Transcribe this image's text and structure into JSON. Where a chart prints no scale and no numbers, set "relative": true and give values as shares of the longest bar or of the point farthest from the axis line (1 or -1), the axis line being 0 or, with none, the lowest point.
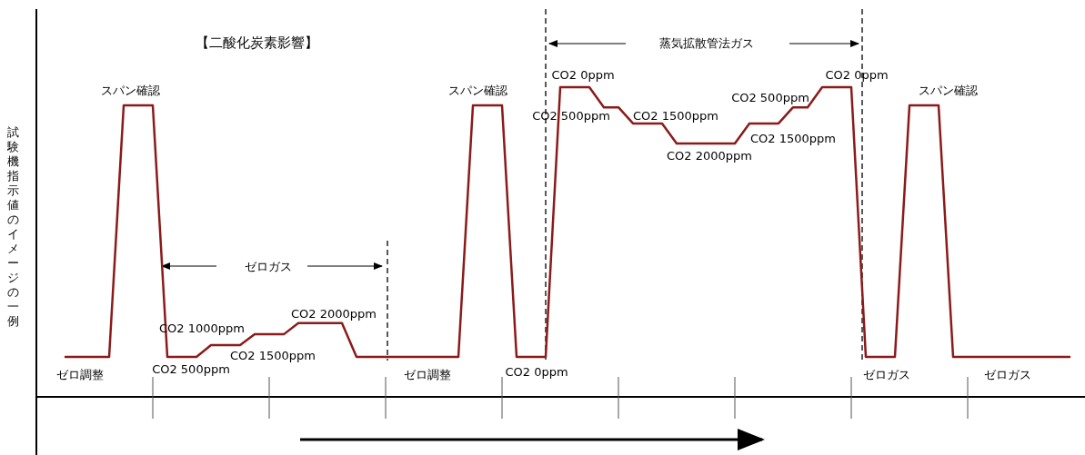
{
  "chart_data": {
    "type": "line",
    "relative": true,
    "title": "【二酸化炭素影響】",
    "ylabel": "試験機指示値のイメージの一例",
    "categories": [
      null,
      null,
      null,
      null,
      null,
      null,
      null,
      null,
      null,
      null,
      null,
      null,
      null,
      null,
      null,
      null,
      null,
      null,
      null,
      null,
      null,
      null,
      null,
      null,
      null,
      null,
      null,
      null,
      null,
      null,
      null,
      null,
      null,
      null,
      null,
      null,
      null,
      null,
      null,
      null,
      null,
      null,
      null,
      null,
      null,
      null,
      null,
      null,
      null,
      null,
      null,
      null,
      null,
      null,
      null,
      null,
      null,
      null,
      null,
      null,
      null,
      null,
      null,
      null,
      null,
      null,
      null,
      null,
      null,
      null,
      null,
      null
    ],
    "series": [
      {
        "color": "#8b1a1a",
        "values": [
          null,
          null,
          0.129,
          0.129,
          0.129,
          0.129,
          0.941,
          0.941,
          0.941,
          0.129,
          0.129,
          0.129,
          0.167,
          0.167,
          0.167,
          0.202,
          0.202,
          0.202,
          0.238,
          0.238,
          0.238,
          0.238,
          0.129,
          0.129,
          0.129,
          0.129,
          0.129,
          0.129,
          0.129,
          0.129,
          0.941,
          0.941,
          0.941,
          0.129,
          0.129,
          0.129,
          1.0,
          1.0,
          1.0,
          0.935,
          0.935,
          0.883,
          0.883,
          0.883,
          0.818,
          0.818,
          0.818,
          0.818,
          0.818,
          0.883,
          0.883,
          0.883,
          0.935,
          0.935,
          1.0,
          1.0,
          1.0,
          0.129,
          0.129,
          0.129,
          0.941,
          0.941,
          0.941,
          0.129,
          0.129,
          0.129,
          0.129,
          0.129,
          0.129,
          0.129,
          0.129,
          0.129
        ]
      }
    ],
    "annotations": [
      "スパン確認",
      "CO2 1000ppm",
      "CO2 500ppm",
      "CO2 1500ppm",
      "CO2 2000ppm",
      "ゼロ調整",
      "ゼロガス",
      "スパン確認",
      "ゼロ調整",
      "CO2 0ppm",
      "蒸気拡散管法ガス",
      "CO2 0ppm",
      "CO2 500ppm",
      "CO2 1500ppm",
      "CO2 2000ppm",
      "CO2 1500ppm",
      "CO2 500ppm",
      "CO2 0ppm",
      "スパン確認",
      "ゼロガス",
      "ゼロガス"
    ]
  }
}
